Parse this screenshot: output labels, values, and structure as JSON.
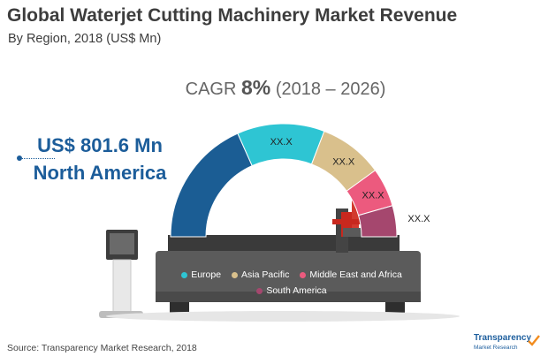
{
  "header": {
    "title": "Global Waterjet Cutting Machinery Market Revenue",
    "subtitle": "By Region, 2018 (US$ Mn)"
  },
  "cagr": {
    "label": "CAGR",
    "value": "8%",
    "period": "(2018 – 2026)"
  },
  "callout": {
    "amount": "US$ 801.6 Mn",
    "region": "North America"
  },
  "chart_data": {
    "type": "pie",
    "title": "Global Waterjet Cutting Machinery Market Revenue",
    "subtitle": "By Region, 2018 (US$ Mn)",
    "shape": "semi-donut",
    "labels": [
      "North America",
      "Europe",
      "Asia Pacific",
      "Middle East and Africa",
      "South America"
    ],
    "values": [
      801.6,
      null,
      null,
      null,
      null
    ],
    "data_labels": [
      "US$ 801.6 Mn",
      "XX.X",
      "XX.X",
      "XX.X",
      "XX.X"
    ],
    "legend": [
      "Europe",
      "Asia Pacific",
      "Middle East and Africa",
      "South America"
    ],
    "legend_placement": "bottom-center",
    "colors": [
      "#1b5d94",
      "#2ec5d3",
      "#d9c08c",
      "#ec5a7e",
      "#a5476e"
    ]
  },
  "source": "Source: Transparency Market Research, 2018",
  "logo": {
    "name": "Transparency",
    "sub": "Market Research"
  }
}
